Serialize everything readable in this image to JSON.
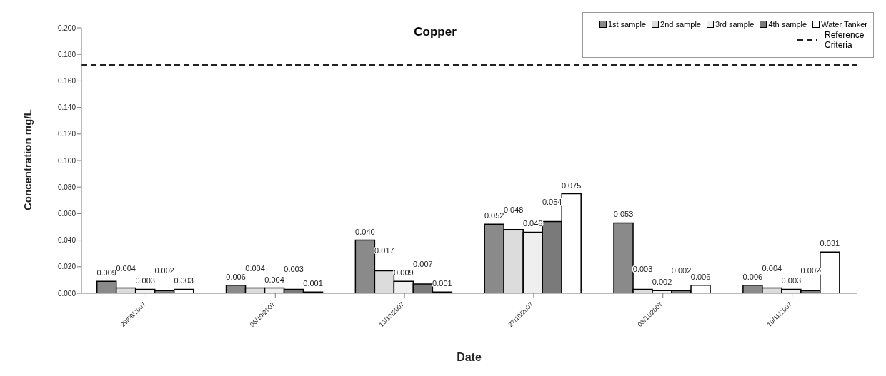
{
  "chart_data": {
    "type": "bar",
    "title": "Copper",
    "xlabel": "Date",
    "ylabel": "Concentration mg/L",
    "categories": [
      "29/09/2007",
      "06/10/2007",
      "13/10/2007",
      "27/10/2007",
      "03/11/2007",
      "10/11/2007"
    ],
    "series": [
      {
        "name": "1st sample",
        "color": "#8a8a8a",
        "values": [
          0.009,
          0.006,
          0.04,
          0.052,
          0.053,
          0.006
        ],
        "value_labels": [
          "0.009",
          "0.006",
          "0.040",
          "0.052",
          "0.053",
          "0.006"
        ]
      },
      {
        "name": "2nd sample",
        "color": "#dcdcdc",
        "values": [
          0.004,
          0.004,
          0.017,
          0.048,
          0.003,
          0.004
        ],
        "value_labels": [
          "0.004",
          "0.004",
          "0.017",
          "0.048",
          "0.003",
          "0.004"
        ]
      },
      {
        "name": "3rd sample",
        "color": "#efefef",
        "values": [
          0.003,
          0.004,
          0.009,
          0.046,
          0.002,
          0.003
        ],
        "value_labels": [
          "0.003",
          "0.004",
          "0.009",
          "0.046",
          "0.002",
          "0.003"
        ]
      },
      {
        "name": "4th sample",
        "color": "#7a7a7a",
        "values": [
          0.002,
          0.003,
          0.007,
          0.054,
          0.002,
          0.002
        ],
        "value_labels": [
          "0.002",
          "0.003",
          "0.007",
          "0.054",
          "0.002",
          "0.002"
        ]
      },
      {
        "name": "Water Tanker",
        "color": "#ffffff",
        "values": [
          0.003,
          0.001,
          0.001,
          0.075,
          0.006,
          0.031
        ],
        "value_labels": [
          "0.003",
          "0.001",
          "0.001",
          "0.075",
          "0.006",
          "0.031"
        ]
      }
    ],
    "ylim": [
      0,
      0.2
    ],
    "yticks": [
      {
        "value": 0,
        "label": "0.000"
      },
      {
        "value": 0.02,
        "label": "0.020"
      },
      {
        "value": 0.04,
        "label": "0.040"
      },
      {
        "value": 0.06,
        "label": "0.060"
      },
      {
        "value": 0.08,
        "label": "0.080"
      },
      {
        "value": 0.1,
        "label": "0.100"
      },
      {
        "value": 0.12,
        "label": "0.120"
      },
      {
        "value": 0.14,
        "label": "0.140"
      },
      {
        "value": 0.16,
        "label": "0.160"
      },
      {
        "value": 0.18,
        "label": "0.180"
      },
      {
        "value": 0.2,
        "label": "0.200"
      }
    ],
    "ref_lines": [
      {
        "axis": "y",
        "value": 0.172,
        "label": "Reference Criteria",
        "color": "#222222",
        "line_style": "dashed"
      }
    ],
    "legend": "top right",
    "grid": false
  }
}
